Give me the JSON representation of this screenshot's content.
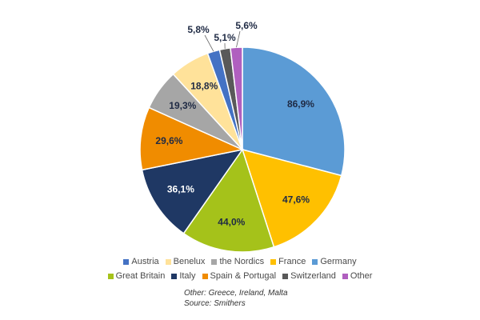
{
  "chart_data": {
    "type": "pie",
    "slices": [
      {
        "name": "Germany",
        "value": 86.9,
        "label": "86,9%",
        "color": "#5b9bd5",
        "label_color": "#1f2a44"
      },
      {
        "name": "France",
        "value": 47.6,
        "label": "47,6%",
        "color": "#ffc000",
        "label_color": "#1f2a44"
      },
      {
        "name": "Great Britain",
        "value": 44.0,
        "label": "44,0%",
        "color": "#a5c21a",
        "label_color": "#1f2a44"
      },
      {
        "name": "Italy",
        "value": 36.1,
        "label": "36,1%",
        "color": "#1f3864",
        "label_color": "#ffffff"
      },
      {
        "name": "Spain & Portugal",
        "value": 29.6,
        "label": "29,6%",
        "color": "#f08c00",
        "label_color": "#1f2a44"
      },
      {
        "name": "the Nordics",
        "value": 19.3,
        "label": "19,3%",
        "color": "#a6a6a6",
        "label_color": "#1f2a44"
      },
      {
        "name": "Benelux",
        "value": 18.8,
        "label": "18,8%",
        "color": "#ffe29a",
        "label_color": "#1f2a44"
      },
      {
        "name": "Austria",
        "value": 5.8,
        "label": "5,8%",
        "color": "#4472c4",
        "label_color": "#1f2a44"
      },
      {
        "name": "Switzerland",
        "value": 5.1,
        "label": "5,1%",
        "color": "#595959",
        "label_color": "#1f2a44"
      },
      {
        "name": "Other",
        "value": 5.6,
        "label": "5,6%",
        "color": "#b05fbf",
        "label_color": "#1f2a44"
      }
    ],
    "legend": {
      "placement": "bottom",
      "rows": [
        [
          "Austria",
          "Benelux",
          "the Nordics",
          "France",
          "Germany"
        ],
        [
          "Great Britain",
          "Italy",
          "Spain & Portugal",
          "Switzerland",
          "Other"
        ]
      ]
    }
  },
  "notes": {
    "other_note": "Other: Greece, Ireland, Malta",
    "source": "Source: Smithers"
  }
}
